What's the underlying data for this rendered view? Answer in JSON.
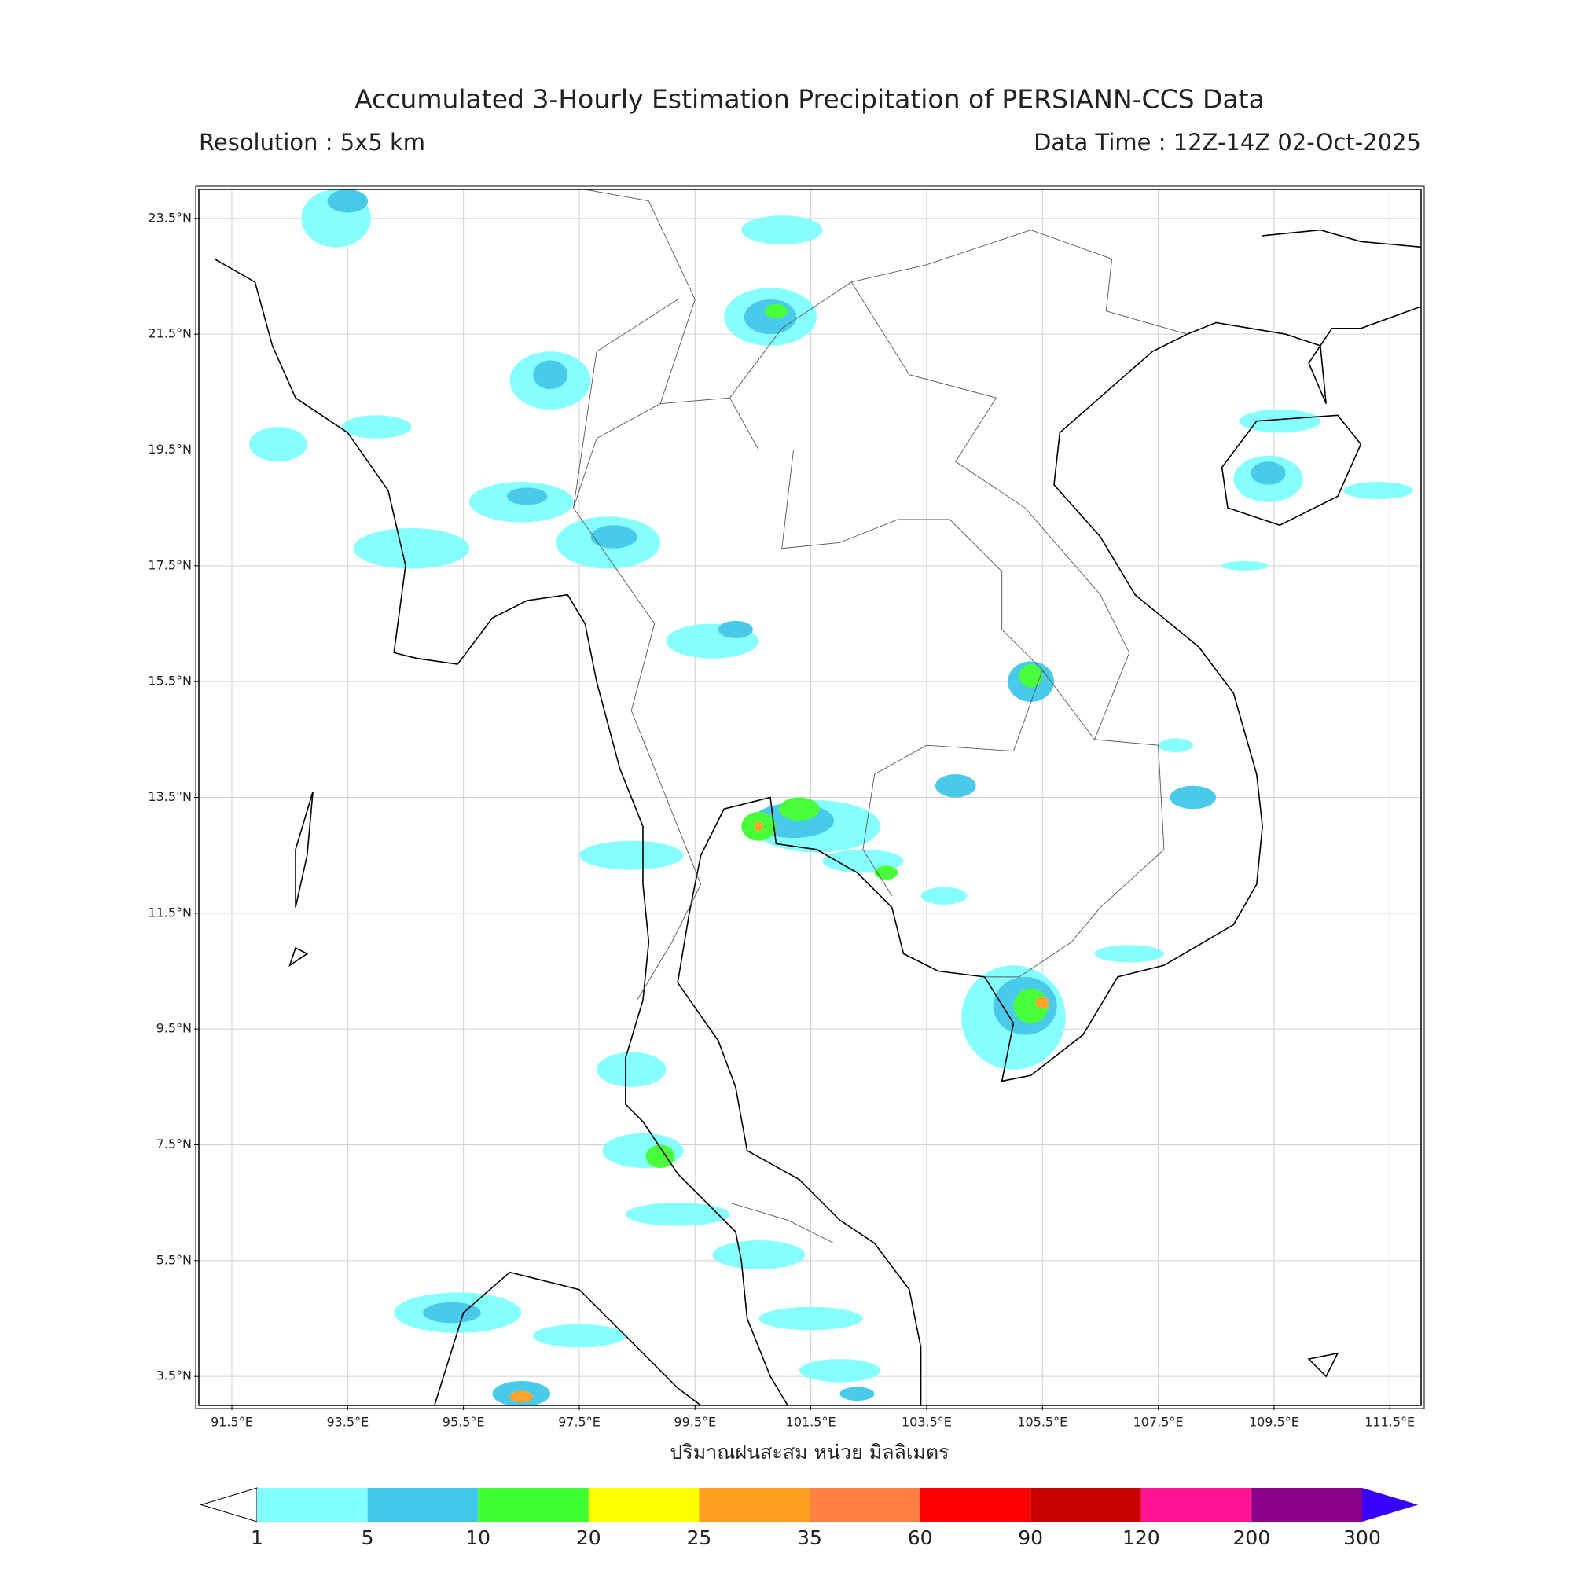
{
  "header": {
    "title": "Accumulated 3-Hourly Estimation Precipitation of PERSIANN-CCS Data",
    "resolution": "Resolution : 5x5 km",
    "data_time": "Data Time : 12Z-14Z 02-Oct-2025"
  },
  "map": {
    "lon_range": [
      90.93,
      112.04
    ],
    "lat_range": [
      3.0,
      24.0
    ],
    "grid": true,
    "lon_ticks": [
      {
        "value": 91.5,
        "label": "91.5°E"
      },
      {
        "value": 93.5,
        "label": "93.5°E"
      },
      {
        "value": 95.5,
        "label": "95.5°E"
      },
      {
        "value": 97.5,
        "label": "97.5°E"
      },
      {
        "value": 99.5,
        "label": "99.5°E"
      },
      {
        "value": 101.5,
        "label": "101.5°E"
      },
      {
        "value": 103.5,
        "label": "103.5°E"
      },
      {
        "value": 105.5,
        "label": "105.5°E"
      },
      {
        "value": 107.5,
        "label": "107.5°E"
      },
      {
        "value": 109.5,
        "label": "109.5°E"
      },
      {
        "value": 111.5,
        "label": "111.5°E"
      }
    ],
    "lat_ticks": [
      {
        "value": 3.5,
        "label": "3.5°N"
      },
      {
        "value": 5.5,
        "label": "5.5°N"
      },
      {
        "value": 7.5,
        "label": "7.5°N"
      },
      {
        "value": 9.5,
        "label": "9.5°N"
      },
      {
        "value": 11.5,
        "label": "11.5°N"
      },
      {
        "value": 13.5,
        "label": "13.5°N"
      },
      {
        "value": 15.5,
        "label": "15.5°N"
      },
      {
        "value": 17.5,
        "label": "17.5°N"
      },
      {
        "value": 19.5,
        "label": "19.5°N"
      },
      {
        "value": 21.5,
        "label": "21.5°N"
      },
      {
        "value": 23.5,
        "label": "23.5°N"
      }
    ],
    "axis_label": "ปริมาณฝนสะสม หน่วย มิลลิเมตร"
  },
  "colorbar": {
    "levels": [
      1,
      5,
      10,
      20,
      25,
      35,
      60,
      90,
      120,
      200,
      300
    ],
    "colors": [
      "#ffffff",
      "#80ffff",
      "#40c8e8",
      "#40ff30",
      "#ffff00",
      "#ffa020",
      "#ff8040",
      "#ff0000",
      "#c80000",
      "#ff1493",
      "#8b008b",
      "#3a00ff"
    ]
  }
}
